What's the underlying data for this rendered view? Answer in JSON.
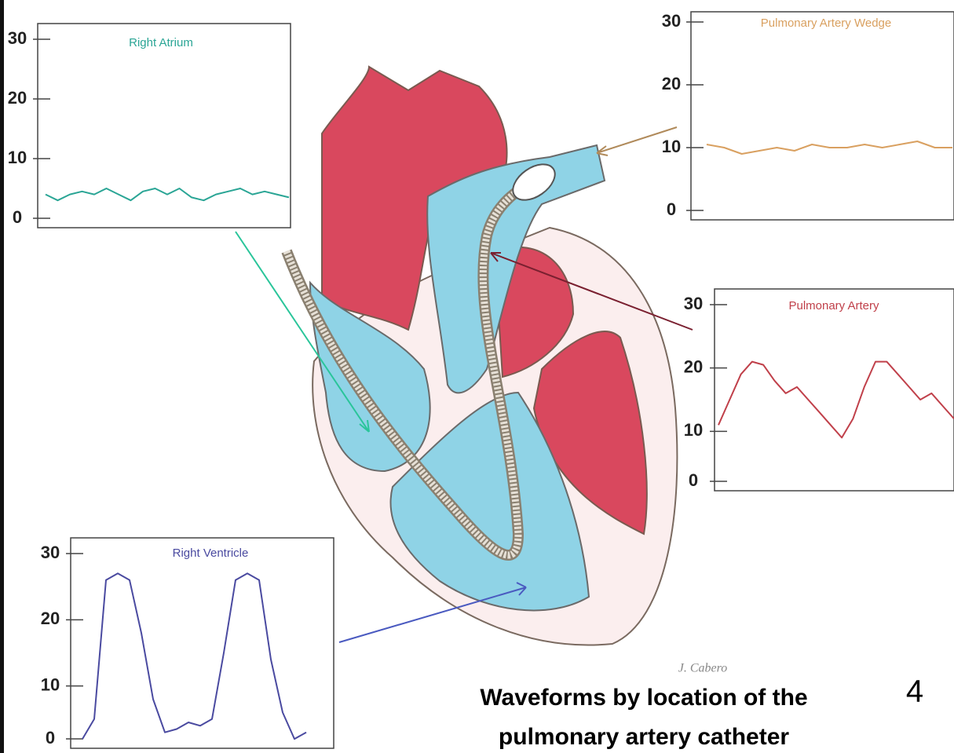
{
  "chart_data": [
    {
      "type": "line",
      "title": "Right Atrium",
      "color": "#2aa595",
      "ylim": [
        0,
        30
      ],
      "yticks": [
        0,
        10,
        20,
        30
      ],
      "values": [
        4,
        3,
        4,
        4.5,
        4,
        5,
        4,
        3,
        4.5,
        5,
        4,
        5,
        3.5,
        3,
        4,
        4.5,
        5,
        4,
        4.5,
        4,
        3.5
      ]
    },
    {
      "type": "line",
      "title": "Pulmonary Artery Wedge",
      "color": "#d9a060",
      "ylim": [
        0,
        30
      ],
      "yticks": [
        0,
        10,
        20,
        30
      ],
      "values": [
        10.5,
        10,
        9,
        9.5,
        10,
        9.5,
        10.5,
        10,
        10,
        10.5,
        10,
        10.5,
        11,
        10,
        10
      ]
    },
    {
      "type": "line",
      "title": "Pulmonary Artery",
      "color": "#c0404a",
      "ylim": [
        0,
        30
      ],
      "yticks": [
        0,
        10,
        20,
        30
      ],
      "values": [
        11,
        15,
        19,
        21,
        20.5,
        18,
        16,
        17,
        15,
        13,
        11,
        9,
        12,
        17,
        21,
        21,
        19,
        17,
        15,
        16,
        14,
        12
      ]
    },
    {
      "type": "line",
      "title": "Right Ventricle",
      "color": "#4a4aa0",
      "ylim": [
        0,
        30
      ],
      "yticks": [
        0,
        10,
        20,
        30
      ],
      "values": [
        2,
        5,
        26,
        27,
        26,
        18,
        8,
        3,
        3.5,
        4.5,
        4,
        5,
        15,
        26,
        27,
        26,
        14,
        6,
        2,
        3
      ]
    }
  ],
  "caption": [
    "Waveforms by location of the",
    "pulmonary artery catheter"
  ],
  "page_number": "4",
  "signature": "J. Cabero"
}
